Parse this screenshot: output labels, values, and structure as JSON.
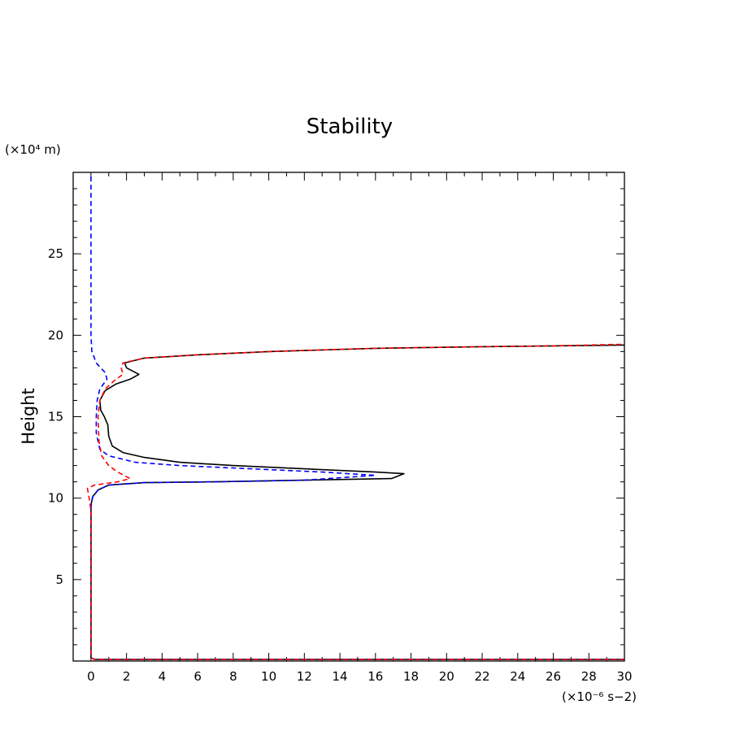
{
  "chart_data": {
    "type": "line",
    "title": "Stability",
    "xlabel": "",
    "ylabel": "Height",
    "x_unit_label": "(×10⁻⁶ s−2)",
    "y_unit_label": "(×10⁴ m)",
    "xlim": [
      -1,
      30
    ],
    "ylim": [
      0,
      30
    ],
    "x_ticks": [
      0,
      2,
      4,
      6,
      8,
      10,
      12,
      14,
      16,
      18,
      20,
      22,
      24,
      26,
      28,
      30
    ],
    "y_ticks": [
      5,
      10,
      15,
      20,
      25
    ],
    "grid": false,
    "legend": "none",
    "series": [
      {
        "color": "#000000",
        "style": "solid",
        "points": [
          [
            30,
            0.1
          ],
          [
            15,
            0.1
          ],
          [
            0.2,
            0.1
          ],
          [
            0,
            0.2
          ],
          [
            0,
            1
          ],
          [
            0,
            5
          ],
          [
            0,
            9.6
          ],
          [
            0.1,
            10.1
          ],
          [
            0.4,
            10.5
          ],
          [
            1,
            10.8
          ],
          [
            3,
            10.95
          ],
          [
            7,
            11.0
          ],
          [
            12,
            11.1
          ],
          [
            16.9,
            11.2
          ],
          [
            17.6,
            11.5
          ],
          [
            16,
            11.6
          ],
          [
            12,
            11.8
          ],
          [
            8,
            12.0
          ],
          [
            5,
            12.2
          ],
          [
            3,
            12.5
          ],
          [
            1.8,
            12.8
          ],
          [
            1.2,
            13.2
          ],
          [
            1.0,
            13.8
          ],
          [
            0.95,
            14.5
          ],
          [
            0.75,
            15.0
          ],
          [
            0.55,
            15.4
          ],
          [
            0.5,
            16.0
          ],
          [
            0.8,
            16.6
          ],
          [
            1.4,
            17.0
          ],
          [
            2.2,
            17.3
          ],
          [
            2.7,
            17.6
          ],
          [
            2.0,
            18.0
          ],
          [
            1.9,
            18.3
          ],
          [
            3,
            18.6
          ],
          [
            6,
            18.8
          ],
          [
            10,
            19.0
          ],
          [
            16,
            19.2
          ],
          [
            22,
            19.3
          ],
          [
            26,
            19.35
          ],
          [
            30,
            19.4
          ]
        ]
      },
      {
        "color": "#0000ff",
        "style": "dashed",
        "points": [
          [
            30,
            0.1
          ],
          [
            15,
            0.1
          ],
          [
            0.2,
            0.1
          ],
          [
            0,
            0.2
          ],
          [
            0,
            1
          ],
          [
            0,
            5
          ],
          [
            0,
            9.5
          ],
          [
            0.1,
            10.1
          ],
          [
            0.4,
            10.5
          ],
          [
            1,
            10.8
          ],
          [
            3,
            10.95
          ],
          [
            7,
            11.0
          ],
          [
            12,
            11.1
          ],
          [
            16,
            11.4
          ],
          [
            13,
            11.6
          ],
          [
            9,
            11.8
          ],
          [
            5,
            12.0
          ],
          [
            2.5,
            12.2
          ],
          [
            1.0,
            12.6
          ],
          [
            0.5,
            13.0
          ],
          [
            0.3,
            14.0
          ],
          [
            0.3,
            15.0
          ],
          [
            0.35,
            16.0
          ],
          [
            0.5,
            16.7
          ],
          [
            0.9,
            17.3
          ],
          [
            0.8,
            17.7
          ],
          [
            0.3,
            18.3
          ],
          [
            0.05,
            19.0
          ],
          [
            0,
            20
          ],
          [
            0,
            25
          ],
          [
            0,
            29.8
          ]
        ]
      },
      {
        "color": "#ff0000",
        "style": "dashed",
        "points": [
          [
            30,
            0.1
          ],
          [
            15,
            0.1
          ],
          [
            0.2,
            0.1
          ],
          [
            0,
            0.2
          ],
          [
            0,
            1
          ],
          [
            0,
            5
          ],
          [
            0,
            9.2
          ],
          [
            -0.1,
            10.0
          ],
          [
            -0.2,
            10.6
          ],
          [
            0.2,
            10.8
          ],
          [
            1.5,
            11.0
          ],
          [
            2.2,
            11.2
          ],
          [
            1.5,
            11.6
          ],
          [
            1.0,
            12.0
          ],
          [
            0.6,
            12.6
          ],
          [
            0.45,
            13.5
          ],
          [
            0.4,
            15.0
          ],
          [
            0.5,
            16.0
          ],
          [
            0.8,
            16.7
          ],
          [
            1.3,
            17.2
          ],
          [
            1.8,
            17.6
          ],
          [
            1.7,
            18.0
          ],
          [
            1.8,
            18.3
          ],
          [
            3,
            18.6
          ],
          [
            6,
            18.8
          ],
          [
            10,
            19.0
          ],
          [
            16,
            19.2
          ],
          [
            22,
            19.3
          ],
          [
            26,
            19.35
          ],
          [
            30,
            19.45
          ]
        ]
      }
    ]
  }
}
